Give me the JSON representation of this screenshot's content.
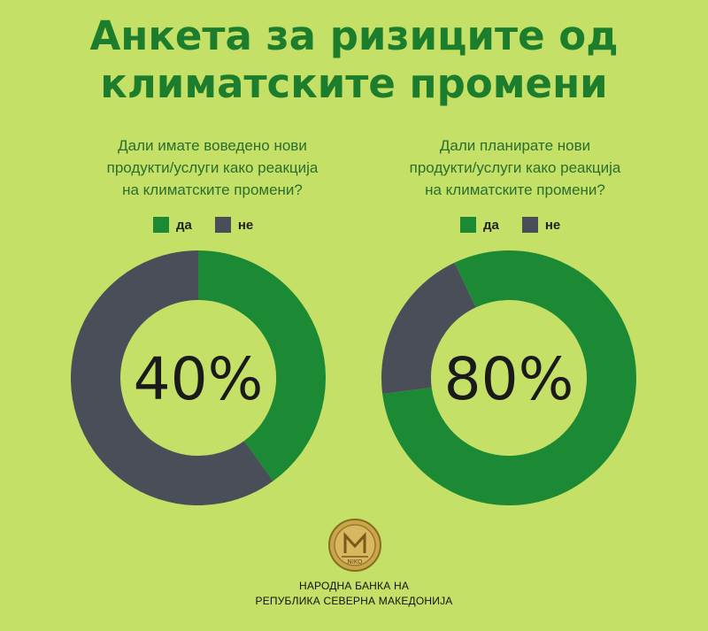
{
  "header": {
    "title_line1": "Анкета за ризиците од",
    "title_line2": "климатските промени"
  },
  "colors": {
    "background": "#c5e066",
    "yes": "#1c8a35",
    "no": "#4a4e58",
    "title": "#1c7d2c"
  },
  "chart_data": [
    {
      "type": "pie",
      "title_lines": [
        "Дали имате воведено нови",
        "продукти/услуги како реакција",
        "на климатските промени?"
      ],
      "legend": [
        "да",
        "не"
      ],
      "categories": [
        "да",
        "не"
      ],
      "values": [
        40,
        60
      ],
      "center_label": "40%"
    },
    {
      "type": "pie",
      "title_lines": [
        "Дали планирате нови",
        "продукти/услуги како реакција",
        "на климатските промени?"
      ],
      "legend": [
        "да",
        "не"
      ],
      "categories": [
        "да",
        "не"
      ],
      "values": [
        80,
        20
      ],
      "center_label": "80%"
    }
  ],
  "footer": {
    "logo_icon": "coin-seal-icon",
    "logo_text": "NIKO",
    "bank_line1": "НАРОДНА БАНКА НА",
    "bank_line2": "РЕПУБЛИКА СЕВЕРНА МАКЕДОНИЈА"
  }
}
